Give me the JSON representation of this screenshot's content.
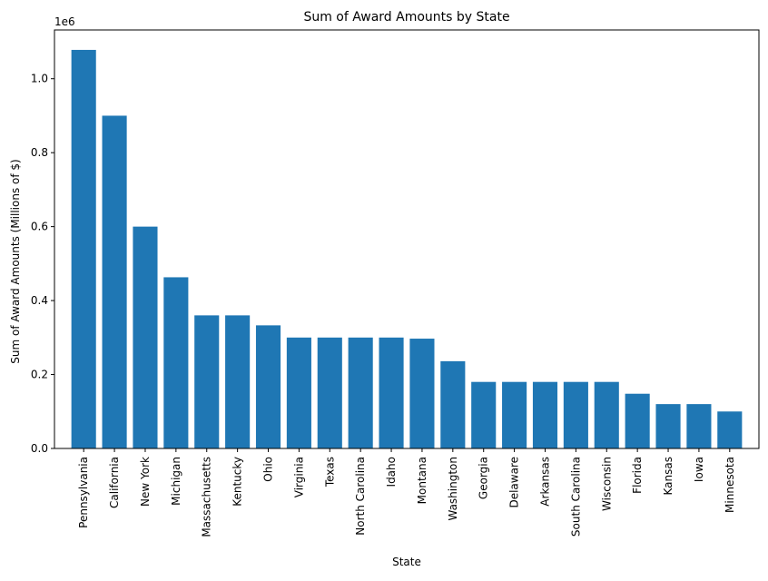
{
  "chart_data": {
    "type": "bar",
    "title": "Sum of Award Amounts by State",
    "xlabel": "State",
    "ylabel": "Sum of Award Amounts (Millions of $)",
    "offset_label": "1e6",
    "categories": [
      "Pennsylvania",
      "California",
      "New York",
      "Michigan",
      "Massachusetts",
      "Kentucky",
      "Ohio",
      "Virginia",
      "Texas",
      "North Carolina",
      "Idaho",
      "Montana",
      "Washington",
      "Georgia",
      "Delaware",
      "Arkansas",
      "South Carolina",
      "Wisconsin",
      "Florida",
      "Kansas",
      "Iowa",
      "Minnesota"
    ],
    "values": [
      1078000,
      900000,
      600000,
      463000,
      360000,
      360000,
      333000,
      300000,
      300000,
      300000,
      300000,
      297000,
      236000,
      180000,
      180000,
      180000,
      180000,
      180000,
      148000,
      120000,
      120000,
      100000
    ],
    "y_ticks": [
      0.0,
      0.2,
      0.4,
      0.6,
      0.8,
      1.0
    ],
    "ylim": [
      0,
      1131900
    ],
    "grid": false,
    "bar_color": "#1f77b4"
  }
}
